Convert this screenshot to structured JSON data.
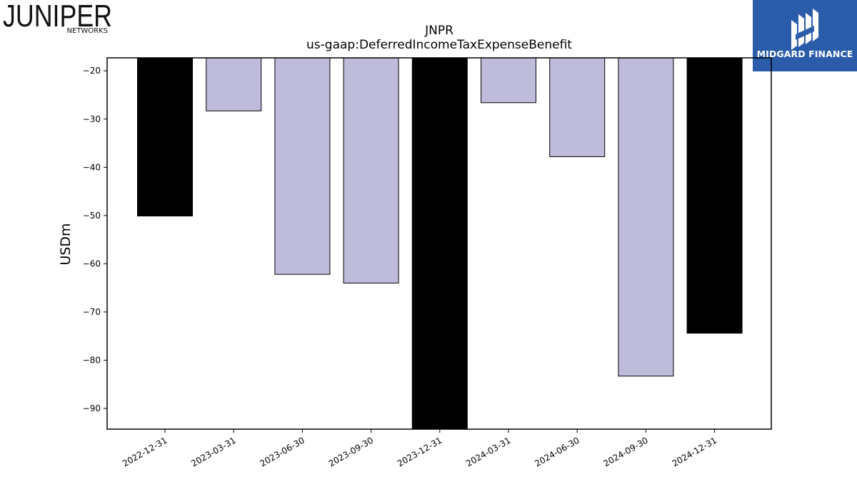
{
  "logos": {
    "left": {
      "name": "JUNIPER",
      "sub": "NETWORKS"
    },
    "right": {
      "name": "MIDGARD FINANCE",
      "color": "#2a5caa"
    }
  },
  "chart_data": {
    "type": "bar",
    "title": "JNPR",
    "subtitle": "us-gaap:DeferredIncomeTaxExpenseBenefit",
    "xlabel": "",
    "ylabel": "USDm",
    "categories": [
      "2022-12-31",
      "2023-03-31",
      "2023-06-30",
      "2023-09-30",
      "2023-12-31",
      "2024-03-31",
      "2024-06-30",
      "2024-09-30",
      "2024-12-31"
    ],
    "values": [
      -50.1,
      -28.3,
      -62.2,
      -64.0,
      -97.0,
      -26.6,
      -37.8,
      -83.3,
      -74.4
    ],
    "bar_colors": [
      "#000000",
      "#bebbdb",
      "#bebbdb",
      "#bebbdb",
      "#000000",
      "#bebbdb",
      "#bebbdb",
      "#bebbdb",
      "#000000"
    ],
    "ylim": [
      -94.3,
      -17.3
    ],
    "yticks": [
      -20,
      -30,
      -40,
      -50,
      -60,
      -70,
      -80,
      -90
    ],
    "grid": false,
    "legend": "none"
  }
}
